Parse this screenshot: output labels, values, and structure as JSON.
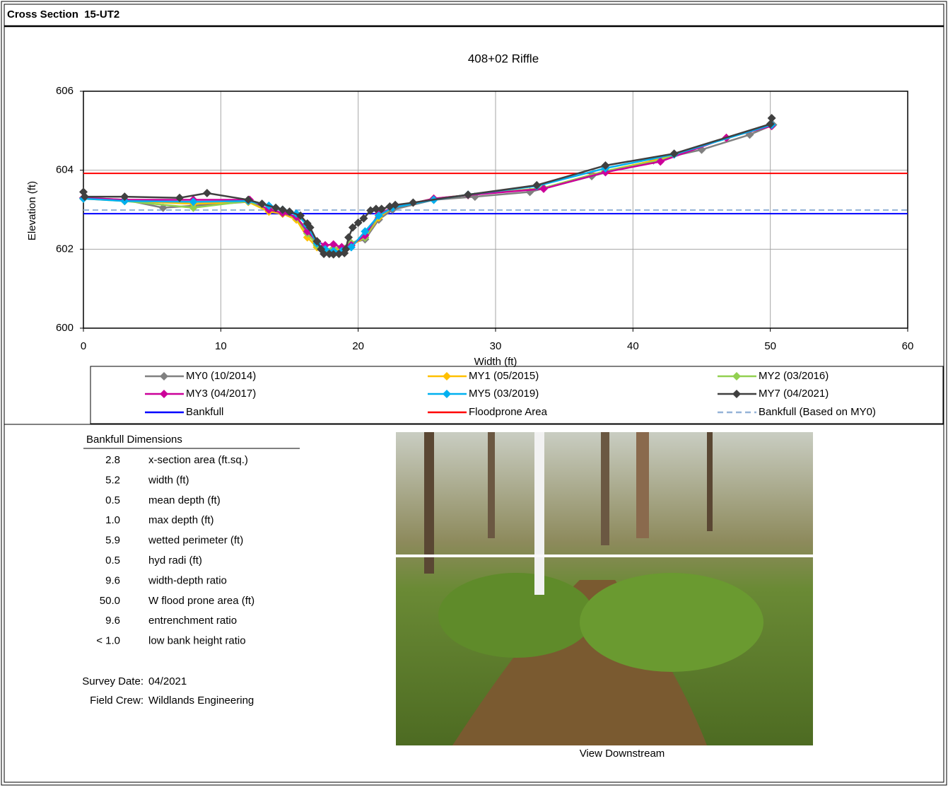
{
  "header": {
    "title": "Cross Section  15-UT2"
  },
  "chart_data": {
    "type": "line",
    "title": "408+02 Riffle",
    "x_label": "Width (ft)",
    "y_label": "Elevation (ft)",
    "xlim": [
      0,
      60
    ],
    "ylim": [
      600,
      606
    ],
    "xticks": [
      0,
      10,
      20,
      30,
      40,
      50,
      60
    ],
    "yticks": [
      600,
      602,
      604,
      606
    ],
    "grid": true,
    "series": [
      {
        "name": "MY0 (10/2014)",
        "color": "#808080",
        "x": [
          0,
          3,
          5.8,
          8,
          12,
          13.5,
          14.5,
          15.5,
          16.3,
          17,
          17.6,
          18.2,
          18.8,
          19.5,
          20.5,
          21.5,
          22.5,
          25.5,
          28.5,
          32.5,
          37,
          41.5,
          45,
          48.5,
          50.2
        ],
        "values": [
          603.3,
          603.25,
          603.05,
          603.1,
          603.2,
          603.0,
          602.9,
          602.8,
          602.5,
          602.15,
          602.0,
          601.98,
          602.05,
          602.15,
          602.25,
          602.75,
          603.0,
          603.25,
          603.33,
          603.45,
          603.85,
          604.25,
          604.52,
          604.9,
          605.15
        ]
      },
      {
        "name": "MY1 (05/2015)",
        "color": "#FFC000",
        "x": [
          0,
          3,
          8,
          12,
          13.5,
          14.5,
          15.5,
          16.3,
          17,
          17.6,
          18.2,
          18.8,
          19.5,
          20.5,
          21.5,
          22.5,
          25.5,
          28,
          33.5,
          38,
          42,
          46.8,
          50.1
        ],
        "values": [
          603.28,
          603.22,
          603.15,
          603.2,
          602.95,
          602.9,
          602.75,
          602.3,
          602.05,
          601.95,
          601.95,
          602.0,
          602.1,
          602.3,
          602.8,
          603.05,
          603.28,
          603.37,
          603.55,
          603.98,
          604.28,
          604.82,
          605.12
        ]
      },
      {
        "name": "MY2 (03/2016)",
        "color": "#92D050",
        "x": [
          0,
          3,
          8,
          12,
          13.5,
          14.5,
          15.5,
          16.3,
          17,
          17.6,
          18.2,
          18.8,
          19.5,
          20.5,
          21.5,
          22.5,
          25.5,
          28,
          33.5,
          38,
          42,
          46.8,
          50.1
        ],
        "values": [
          603.3,
          603.22,
          603.05,
          603.22,
          603.0,
          602.92,
          602.8,
          602.4,
          602.1,
          602.0,
          602.02,
          602.05,
          602.15,
          602.3,
          602.85,
          603.05,
          603.28,
          603.37,
          603.55,
          603.98,
          604.25,
          604.82,
          605.12
        ]
      },
      {
        "name": "MY3 (04/2017)",
        "color": "#CC0099",
        "x": [
          0,
          3,
          8,
          12.1,
          13.5,
          14.5,
          15.5,
          16.3,
          17,
          17.6,
          18.2,
          18.8,
          19.5,
          20.5,
          21.5,
          22.5,
          25.5,
          28,
          33.5,
          38,
          42,
          46.8,
          50.1
        ],
        "values": [
          603.3,
          603.25,
          603.25,
          603.25,
          603.0,
          602.92,
          602.82,
          602.45,
          602.2,
          602.1,
          602.12,
          602.05,
          602.1,
          602.35,
          602.9,
          603.05,
          603.28,
          603.37,
          603.53,
          603.95,
          604.22,
          604.82,
          605.12
        ]
      },
      {
        "name": "MY5 (03/2019)",
        "color": "#00B0F0",
        "x": [
          0,
          3,
          8,
          12,
          13.5,
          14.5,
          15.5,
          16.3,
          17,
          17.6,
          18.2,
          18.8,
          19.5,
          20.5,
          21.5,
          22.5,
          25.5,
          28,
          33,
          38,
          43,
          50.1
        ],
        "values": [
          603.28,
          603.22,
          603.2,
          603.22,
          603.1,
          603.0,
          602.9,
          602.6,
          602.15,
          602.0,
          601.95,
          601.95,
          602.05,
          602.45,
          602.85,
          603.05,
          603.25,
          603.38,
          603.6,
          604.05,
          604.4,
          605.15
        ]
      },
      {
        "name": "MY7 (04/2021)",
        "color": "#404040",
        "x": [
          0,
          0.1,
          3,
          7,
          9,
          12,
          13,
          14,
          14.5,
          15,
          15.8,
          16.3,
          16.5,
          17,
          17.3,
          17.5,
          17.9,
          18.2,
          18.6,
          19,
          19.1,
          19.3,
          19.6,
          20,
          20.4,
          20.9,
          21.3,
          21.7,
          22.3,
          22.7,
          24,
          28,
          33,
          38,
          43,
          50,
          50.1
        ],
        "values": [
          603.45,
          603.33,
          603.33,
          603.3,
          603.42,
          603.25,
          603.15,
          603.05,
          603.0,
          602.95,
          602.85,
          602.65,
          602.55,
          602.2,
          602.0,
          601.88,
          601.88,
          601.87,
          601.88,
          601.9,
          602.0,
          602.3,
          602.55,
          602.67,
          602.78,
          602.98,
          603.02,
          603.02,
          603.08,
          603.12,
          603.18,
          603.38,
          603.62,
          604.12,
          604.42,
          605.17,
          605.32
        ]
      }
    ],
    "reference_lines": [
      {
        "name": "Bankfull",
        "color": "#0000FF",
        "value": 602.9,
        "style": "solid"
      },
      {
        "name": "Floodprone Area",
        "color": "#FF0000",
        "value": 603.92,
        "style": "solid"
      },
      {
        "name": "Bankfull (Based on MY0)",
        "color": "#95B3D7",
        "value": 602.99,
        "style": "dashed"
      }
    ]
  },
  "dimensions": {
    "title": "Bankfull Dimensions",
    "rows": [
      [
        "2.8",
        "x-section area (ft.sq.)"
      ],
      [
        "5.2",
        "width (ft)"
      ],
      [
        "0.5",
        "mean depth (ft)"
      ],
      [
        "1.0",
        "max depth (ft)"
      ],
      [
        "5.9",
        "wetted perimeter (ft)"
      ],
      [
        "0.5",
        "hyd radi (ft)"
      ],
      [
        "9.6",
        "width-depth ratio"
      ],
      [
        "50.0",
        "W flood prone area (ft)"
      ],
      [
        "9.6",
        "entrenchment ratio"
      ],
      [
        "< 1.0",
        "low bank height ratio"
      ]
    ]
  },
  "survey": {
    "rows": [
      [
        "Survey Date:",
        "04/2021"
      ],
      [
        "Field Crew:",
        "Wildlands Engineering"
      ]
    ]
  },
  "photo": {
    "caption": "View Downstream"
  }
}
